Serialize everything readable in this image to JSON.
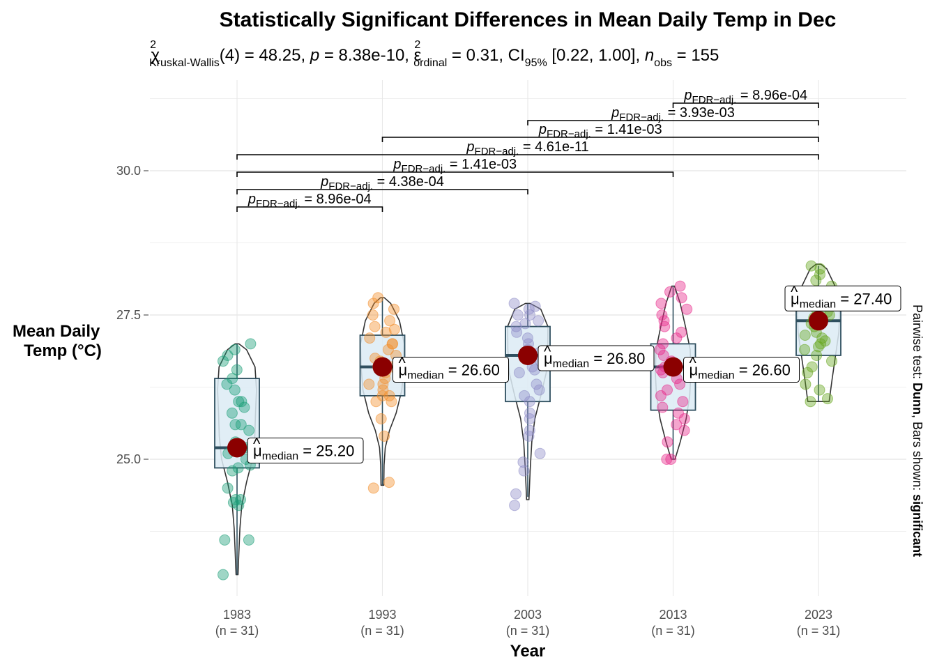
{
  "chart_data": {
    "type": "violin-box-scatter",
    "title": "Statistically Significant Differences in Mean Daily Temp in Dec",
    "subtitle": {
      "chi": "χ",
      "chi_sup": "2",
      "chi_sub": "Kruskal-Wallis",
      "df": "(4) = 48.25, ",
      "p_sym": "p",
      "p_val": " = 8.38e-10, ",
      "eps": "ε",
      "eps_sup": "2",
      "eps_sub": "ordinal",
      "eps_val": " = 0.31, CI",
      "ci_sub": "95%",
      "ci_val": " [0.22, 1.00], ",
      "n_sym": "n",
      "n_sub": "obs",
      "n_val": " = 155"
    },
    "xlabel": "Year",
    "ylabel_lines": [
      "Mean Daily",
      "Temp (°C)"
    ],
    "caption_parts": [
      "Pairwise test: ",
      "Dunn",
      ", Bars shown: ",
      "significant"
    ],
    "y_ticks": [
      "25.0",
      "27.5",
      "30.0"
    ],
    "ylim": [
      22.9,
      31.7
    ],
    "categories": [
      "1983",
      "1993",
      "2003",
      "2013",
      "2023"
    ],
    "n_labels": [
      "(n = 31)",
      "(n = 31)",
      "(n = 31)",
      "(n = 31)",
      "(n = 31)"
    ],
    "colors": [
      "#1B9E77",
      "#F28E2B",
      "#8E8CC7",
      "#E7298A",
      "#66A61E"
    ],
    "median_color": "#8B0000",
    "box_fill": "#DCEBF4",
    "box_stroke": "#2F4F5F",
    "median_label_prefix": "μ",
    "median_label_sub": "median",
    "groups": [
      {
        "year": "1983",
        "median": 25.2,
        "q1": 24.85,
        "q3": 26.4,
        "whisker_low": 23.0,
        "whisker_high": 27.0,
        "median_label": " = 25.20",
        "points": [
          23.0,
          23.6,
          23.6,
          24.2,
          24.25,
          24.3,
          24.3,
          24.5,
          24.8,
          24.85,
          24.9,
          25.0,
          25.1,
          25.2,
          25.2,
          25.3,
          25.5,
          25.6,
          25.6,
          25.8,
          25.9,
          26.0,
          26.0,
          26.2,
          26.3,
          26.4,
          26.55,
          26.7,
          26.8,
          26.9,
          27.0
        ],
        "violin": [
          [
            23.0,
            0.04
          ],
          [
            23.4,
            0.08
          ],
          [
            23.8,
            0.12
          ],
          [
            24.2,
            0.2
          ],
          [
            24.6,
            0.4
          ],
          [
            25.0,
            0.65
          ],
          [
            25.4,
            0.75
          ],
          [
            25.8,
            0.78
          ],
          [
            26.2,
            0.82
          ],
          [
            26.6,
            0.76
          ],
          [
            26.9,
            0.4
          ],
          [
            27.0,
            0.08
          ]
        ]
      },
      {
        "year": "1993",
        "median": 26.6,
        "q1": 26.1,
        "q3": 27.15,
        "whisker_low": 24.55,
        "whisker_high": 27.8,
        "median_label": " = 26.60",
        "points": [
          24.5,
          24.6,
          25.4,
          25.7,
          26.0,
          26.0,
          26.1,
          26.1,
          26.2,
          26.3,
          26.3,
          26.4,
          26.5,
          26.55,
          26.6,
          26.6,
          26.7,
          26.75,
          26.8,
          26.9,
          27.0,
          27.0,
          27.1,
          27.2,
          27.25,
          27.3,
          27.4,
          27.5,
          27.6,
          27.7,
          27.8
        ],
        "violin": [
          [
            24.55,
            0.06
          ],
          [
            24.9,
            0.07
          ],
          [
            25.2,
            0.12
          ],
          [
            25.5,
            0.3
          ],
          [
            25.8,
            0.58
          ],
          [
            26.2,
            0.82
          ],
          [
            26.6,
            0.9
          ],
          [
            27.0,
            0.92
          ],
          [
            27.4,
            0.72
          ],
          [
            27.7,
            0.35
          ],
          [
            27.8,
            0.08
          ]
        ]
      },
      {
        "year": "2003",
        "median": 26.8,
        "q1": 26.0,
        "q3": 27.3,
        "whisker_low": 24.35,
        "whisker_high": 27.7,
        "median_label": " = 26.80",
        "points": [
          24.2,
          24.4,
          24.8,
          24.95,
          25.1,
          25.4,
          25.5,
          25.7,
          25.8,
          26.0,
          26.1,
          26.2,
          26.3,
          26.5,
          26.55,
          26.6,
          26.7,
          26.8,
          26.85,
          26.9,
          27.0,
          27.1,
          27.2,
          27.3,
          27.35,
          27.4,
          27.5,
          27.5,
          27.6,
          27.65,
          27.7
        ],
        "violin": [
          [
            24.3,
            0.05
          ],
          [
            24.8,
            0.1
          ],
          [
            25.3,
            0.17
          ],
          [
            25.7,
            0.3
          ],
          [
            26.1,
            0.55
          ],
          [
            26.5,
            0.78
          ],
          [
            26.9,
            0.84
          ],
          [
            27.3,
            0.85
          ],
          [
            27.6,
            0.55
          ],
          [
            27.7,
            0.1
          ]
        ]
      },
      {
        "year": "2013",
        "median": 26.6,
        "q1": 25.85,
        "q3": 27.0,
        "whisker_low": 25.0,
        "whisker_high": 28.0,
        "median_label": " = 26.60",
        "points": [
          25.0,
          25.0,
          25.3,
          25.5,
          25.6,
          25.7,
          25.8,
          25.9,
          26.0,
          26.1,
          26.2,
          26.3,
          26.4,
          26.5,
          26.55,
          26.6,
          26.65,
          26.7,
          26.8,
          26.9,
          27.0,
          27.1,
          27.2,
          27.3,
          27.4,
          27.5,
          27.6,
          27.7,
          27.8,
          27.9,
          28.0
        ],
        "violin": [
          [
            25.0,
            0.08
          ],
          [
            25.3,
            0.3
          ],
          [
            25.7,
            0.55
          ],
          [
            26.1,
            0.7
          ],
          [
            26.5,
            0.75
          ],
          [
            26.9,
            0.72
          ],
          [
            27.3,
            0.52
          ],
          [
            27.7,
            0.3
          ],
          [
            28.0,
            0.06
          ]
        ]
      },
      {
        "year": "2023",
        "median": 27.4,
        "q1": 26.8,
        "q3": 27.85,
        "whisker_low": 26.0,
        "whisker_high": 28.35,
        "median_label": " = 27.40",
        "points": [
          26.0,
          26.05,
          26.2,
          26.3,
          26.5,
          26.6,
          26.7,
          26.8,
          26.9,
          26.95,
          27.0,
          27.05,
          27.1,
          27.15,
          27.2,
          27.3,
          27.35,
          27.4,
          27.45,
          27.5,
          27.55,
          27.6,
          27.7,
          27.75,
          27.8,
          27.9,
          28.0,
          28.1,
          28.2,
          28.3,
          28.35
        ],
        "violin": [
          [
            26.0,
            0.45
          ],
          [
            26.4,
            0.58
          ],
          [
            26.8,
            0.72
          ],
          [
            27.2,
            0.86
          ],
          [
            27.6,
            0.9
          ],
          [
            28.0,
            0.7
          ],
          [
            28.3,
            0.35
          ],
          [
            28.38,
            0.1
          ]
        ]
      }
    ],
    "pairwise": [
      {
        "from": "1983",
        "to": "1993",
        "p_sym": "p",
        "p_sub": "FDR−adj.",
        "p_val": " = 8.96e-04",
        "level": 0
      },
      {
        "from": "1983",
        "to": "2003",
        "p_sym": "p",
        "p_sub": "FDR−adj.",
        "p_val": " = 4.38e-04",
        "level": 1
      },
      {
        "from": "1983",
        "to": "2013",
        "p_sym": "p",
        "p_sub": "FDR−adj.",
        "p_val": " = 1.41e-03",
        "level": 2
      },
      {
        "from": "1983",
        "to": "2023",
        "p_sym": "p",
        "p_sub": "FDR−adj.",
        "p_val": " = 4.61e-11",
        "level": 3
      },
      {
        "from": "1993",
        "to": "2023",
        "p_sym": "p",
        "p_sub": "FDR−adj.",
        "p_val": " = 1.41e-03",
        "level": 4
      },
      {
        "from": "2003",
        "to": "2023",
        "p_sym": "p",
        "p_sub": "FDR−adj.",
        "p_val": " = 3.93e-03",
        "level": 5
      },
      {
        "from": "2013",
        "to": "2023",
        "p_sym": "p",
        "p_sub": "FDR−adj.",
        "p_val": " = 8.96e-04",
        "level": 6
      }
    ]
  }
}
